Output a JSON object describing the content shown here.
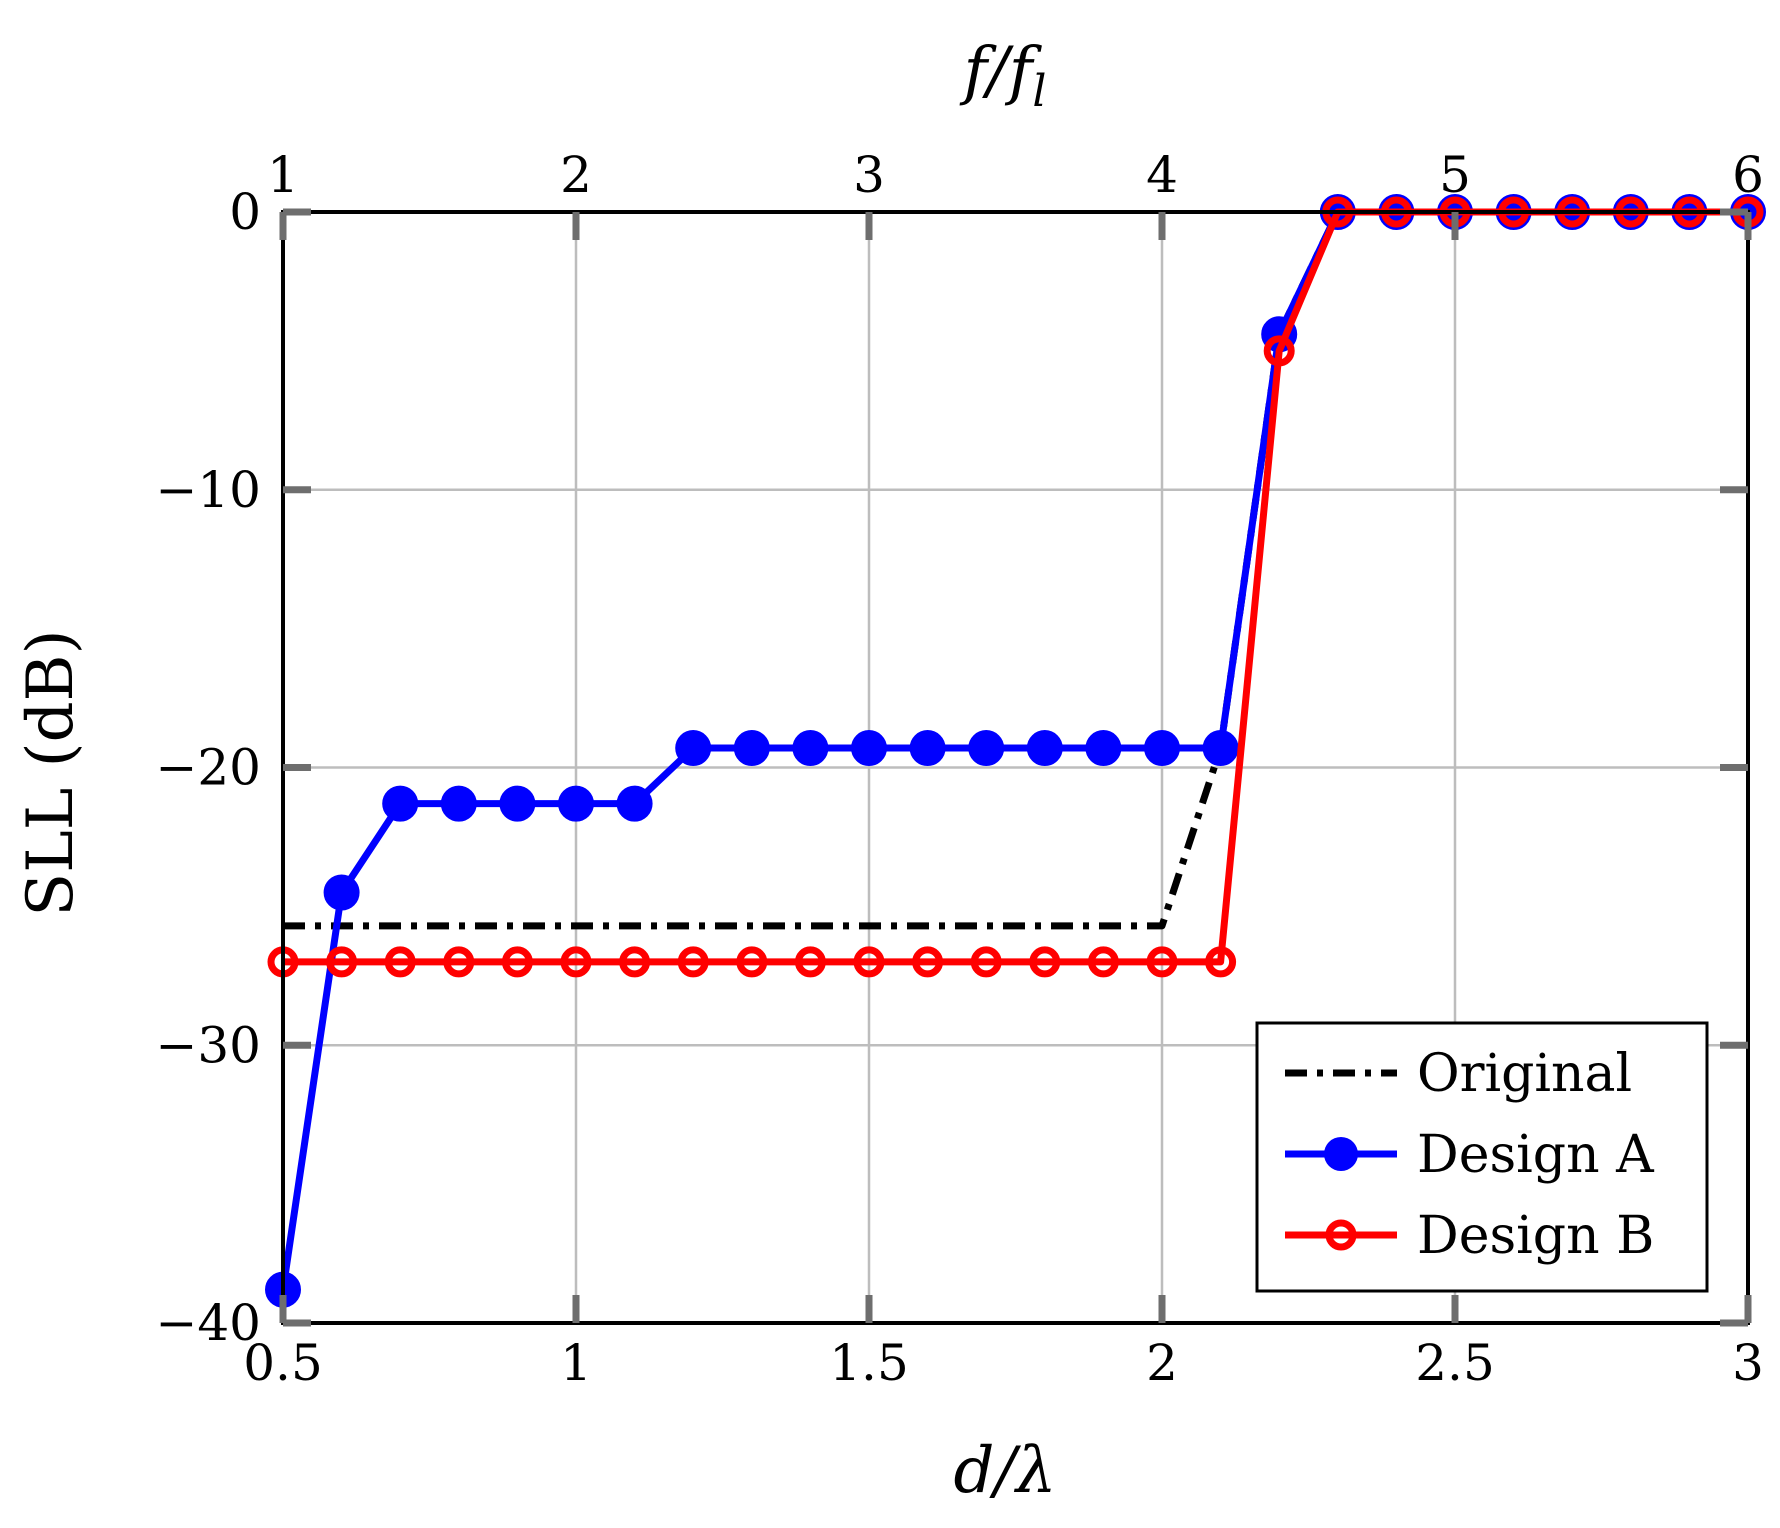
{
  "chart_data": {
    "type": "line",
    "xlabel": "d/λ",
    "ylabel": "SLL (dB)",
    "top_xlabel": "f/f_l",
    "top_xlabel_main": "f/f",
    "top_xlabel_sub": "l",
    "xlim": [
      0.5,
      3
    ],
    "ylim": [
      -40,
      0
    ],
    "xticks": [
      0.5,
      1,
      1.5,
      2,
      2.5,
      3
    ],
    "xtick_labels": [
      "0.5",
      "1",
      "1.5",
      "2",
      "2.5",
      "3"
    ],
    "yticks": [
      0,
      -10,
      -20,
      -30,
      -40
    ],
    "ytick_labels": [
      "0",
      "−10",
      "−20",
      "−30",
      "−40"
    ],
    "top_xticks": [
      1,
      2,
      3,
      4,
      5,
      6
    ],
    "top_xtick_labels": [
      "1",
      "2",
      "3",
      "4",
      "5",
      "6"
    ],
    "grid": true,
    "legend_position": "bottom-right",
    "series": [
      {
        "name": "Original",
        "color": "#000000",
        "style": "dash-dot",
        "marker": "none",
        "x": [
          0.5,
          2.0,
          2.1,
          2.2,
          2.3,
          3.0
        ],
        "y": [
          -25.7,
          -25.7,
          -19.3,
          -4.4,
          0,
          0
        ]
      },
      {
        "name": "Design A",
        "color": "#0000ff",
        "style": "solid",
        "marker": "filled-circle",
        "x": [
          0.5,
          0.6,
          0.7,
          0.8,
          0.9,
          1.0,
          1.1,
          1.2,
          1.3,
          1.4,
          1.5,
          1.6,
          1.7,
          1.8,
          1.9,
          2.0,
          2.1,
          2.2,
          2.3,
          2.4,
          2.5,
          2.6,
          2.7,
          2.8,
          2.9,
          3.0
        ],
        "y": [
          -38.8,
          -24.5,
          -21.3,
          -21.3,
          -21.3,
          -21.3,
          -21.3,
          -19.3,
          -19.3,
          -19.3,
          -19.3,
          -19.3,
          -19.3,
          -19.3,
          -19.3,
          -19.3,
          -19.3,
          -4.4,
          0,
          0,
          0,
          0,
          0,
          0,
          0,
          0
        ]
      },
      {
        "name": "Design B",
        "color": "#ff0000",
        "style": "solid",
        "marker": "open-circle",
        "x": [
          0.5,
          0.6,
          0.7,
          0.8,
          0.9,
          1.0,
          1.1,
          1.2,
          1.3,
          1.4,
          1.5,
          1.6,
          1.7,
          1.8,
          1.9,
          2.0,
          2.1,
          2.2,
          2.3,
          2.4,
          2.5,
          2.6,
          2.7,
          2.8,
          2.9,
          3.0
        ],
        "y": [
          -27.0,
          -27.0,
          -27.0,
          -27.0,
          -27.0,
          -27.0,
          -27.0,
          -27.0,
          -27.0,
          -27.0,
          -27.0,
          -27.0,
          -27.0,
          -27.0,
          -27.0,
          -27.0,
          -27.0,
          -5.0,
          0,
          0,
          0,
          0,
          0,
          0,
          0,
          0
        ]
      }
    ]
  }
}
